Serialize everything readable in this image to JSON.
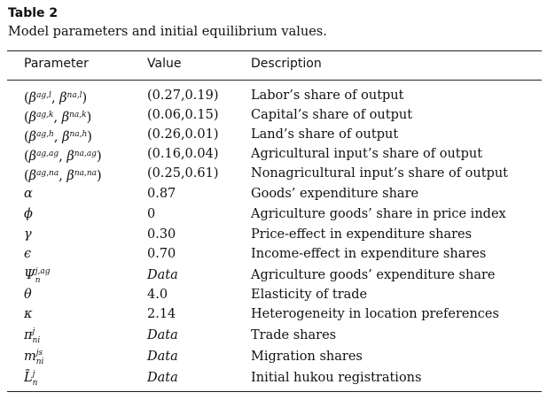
{
  "table": {
    "label": "Table 2",
    "caption": "Model parameters and initial equilibrium values.",
    "headers": {
      "parameter": "Parameter",
      "value": "Value",
      "description": "Description"
    },
    "rows": [
      {
        "parameter": "(β^{ag,l}, β^{na,l})",
        "value": "(0.27,0.19)",
        "description": "Labor’s share of output"
      },
      {
        "parameter": "(β^{ag,k}, β^{na,k})",
        "value": "(0.06,0.15)",
        "description": "Capital’s share of output"
      },
      {
        "parameter": "(β^{ag,h}, β^{na,h})",
        "value": "(0.26,0.01)",
        "description": "Land’s share of output"
      },
      {
        "parameter": "(β^{ag,ag}, β^{na,ag})",
        "value": "(0.16,0.04)",
        "description": "Agricultural input’s share of output"
      },
      {
        "parameter": "(β^{ag,na}, β^{na,na})",
        "value": "(0.25,0.61)",
        "description": "Nonagricultural input’s share of output"
      },
      {
        "parameter": "α",
        "value": "0.87",
        "description": "Goods’ expenditure share"
      },
      {
        "parameter": "ϕ",
        "value": "0",
        "description": "Agriculture goods’ share in price index"
      },
      {
        "parameter": "γ",
        "value": "0.30",
        "description": "Price-effect in expenditure shares"
      },
      {
        "parameter": "ϵ",
        "value": "0.70",
        "description": "Income-effect in expenditure shares"
      },
      {
        "parameter": "Ψ_n^{j,ag}",
        "value": "Data",
        "description": "Agriculture goods’ expenditure share"
      },
      {
        "parameter": "θ",
        "value": "4.0",
        "description": "Elasticity of trade"
      },
      {
        "parameter": "κ",
        "value": "2.14",
        "description": "Heterogeneity in location preferences"
      },
      {
        "parameter": "π_{ni}^{j}",
        "value": "Data",
        "description": "Trade shares"
      },
      {
        "parameter": "m_{ni}^{js}",
        "value": "Data",
        "description": "Migration shares"
      },
      {
        "parameter": "L̄_n^{j}",
        "value": "Data",
        "description": "Initial hukou registrations"
      }
    ]
  }
}
